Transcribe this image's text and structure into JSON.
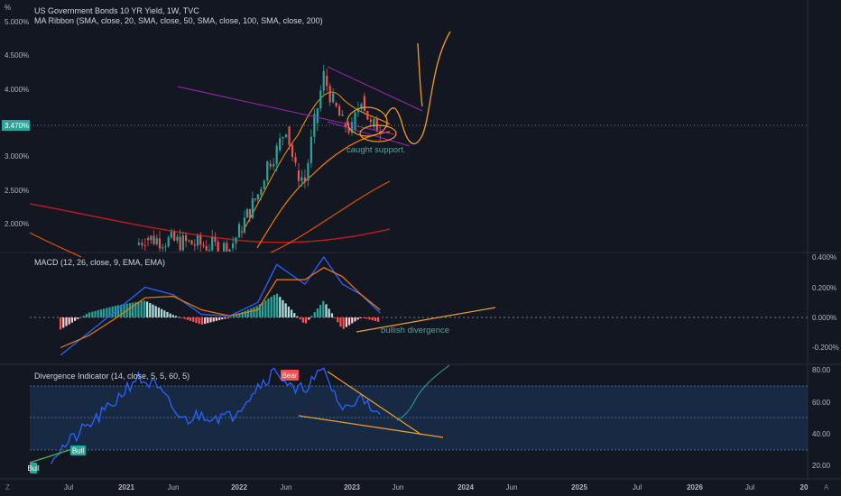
{
  "header": {
    "corner_symbol": "%",
    "title": "US Government Bonds 10 YR Yield, 1W, TVC",
    "ma_ribbon": "MA Ribbon (SMA, close, 20, SMA, close, 50, SMA, close, 100, SMA, close, 200)",
    "macd_label": "MACD (12, 26, close, 9, EMA, EMA)",
    "div_label": "Divergence Indicator (14, close, 5, 5, 60, 5)"
  },
  "annotations": {
    "support": "caught support.",
    "bullish_div": "bullish divergence",
    "bear": "Bear",
    "bull": "Bull",
    "bull_small": "Bull",
    "current_price": "3.470%",
    "bottom_left": "Z",
    "bottom_right": "A"
  },
  "colors": {
    "background": "#131722",
    "up": "#26a69a",
    "down": "#ef5350",
    "rsi_line": "#2962ff",
    "ma_orange": "#f57c00",
    "ma_red": "#b71c1c",
    "trendline_purple": "#9c27b0",
    "drawing_orange": "#f59b29",
    "rsi_band": "#1e3a5f"
  },
  "chart_data": [
    {
      "type": "candlestick",
      "title": "US Government Bonds 10 YR Yield, 1W, TVC",
      "y_axis_ticks": [
        "5.000%",
        "4.500%",
        "4.000%",
        "3.470%",
        "3.000%",
        "2.500%",
        "2.000%"
      ],
      "ylim": [
        1.6,
        5.2
      ],
      "x_tick_labels": [
        "Jul",
        "2021",
        "Jun",
        "2022",
        "Jun",
        "2023",
        "Jun",
        "2024",
        "Jun",
        "2025",
        "Jul",
        "2026",
        "Jul",
        "20"
      ],
      "approx_closes": [
        {
          "date": "2021-02",
          "value": 1.7
        },
        {
          "date": "2021-03",
          "value": 1.8
        },
        {
          "date": "2021-12",
          "value": 1.65
        },
        {
          "date": "2022-01",
          "value": 1.9
        },
        {
          "date": "2022-03",
          "value": 2.45
        },
        {
          "date": "2022-04",
          "value": 2.9
        },
        {
          "date": "2022-05",
          "value": 3.1
        },
        {
          "date": "2022-06",
          "value": 3.45
        },
        {
          "date": "2022-07",
          "value": 2.8
        },
        {
          "date": "2022-08",
          "value": 2.65
        },
        {
          "date": "2022-09",
          "value": 3.5
        },
        {
          "date": "2022-10",
          "value": 4.2
        },
        {
          "date": "2022-11",
          "value": 3.8
        },
        {
          "date": "2022-12",
          "value": 3.5
        },
        {
          "date": "2023-01",
          "value": 3.4
        },
        {
          "date": "2023-02",
          "value": 3.9
        },
        {
          "date": "2023-03",
          "value": 3.45
        },
        {
          "date": "2023-04",
          "value": 3.45
        }
      ],
      "current_price": 3.47
    },
    {
      "type": "histogram+line",
      "title": "MACD (12, 26, close, 9, EMA, EMA)",
      "y_axis_ticks": [
        "0.400%",
        "0.200%",
        "0.000%",
        "-0.200%"
      ],
      "ylim": [
        -0.3,
        0.45
      ],
      "macd_points": [
        {
          "date": "2020-06",
          "value": -0.25
        },
        {
          "date": "2020-09",
          "value": -0.1
        },
        {
          "date": "2020-12",
          "value": 0.05
        },
        {
          "date": "2021-03",
          "value": 0.2
        },
        {
          "date": "2021-06",
          "value": 0.15
        },
        {
          "date": "2021-09",
          "value": 0.02
        },
        {
          "date": "2021-12",
          "value": 0.01
        },
        {
          "date": "2022-03",
          "value": 0.1
        },
        {
          "date": "2022-05",
          "value": 0.35
        },
        {
          "date": "2022-08",
          "value": 0.22
        },
        {
          "date": "2022-10",
          "value": 0.4
        },
        {
          "date": "2022-12",
          "value": 0.22
        },
        {
          "date": "2023-02",
          "value": 0.15
        },
        {
          "date": "2023-04",
          "value": 0.03
        }
      ],
      "signal_points": [
        {
          "date": "2020-06",
          "value": -0.2
        },
        {
          "date": "2020-09",
          "value": -0.12
        },
        {
          "date": "2020-12",
          "value": 0.0
        },
        {
          "date": "2021-03",
          "value": 0.13
        },
        {
          "date": "2021-06",
          "value": 0.14
        },
        {
          "date": "2021-09",
          "value": 0.05
        },
        {
          "date": "2021-12",
          "value": 0.01
        },
        {
          "date": "2022-03",
          "value": 0.05
        },
        {
          "date": "2022-05",
          "value": 0.25
        },
        {
          "date": "2022-08",
          "value": 0.25
        },
        {
          "date": "2022-10",
          "value": 0.33
        },
        {
          "date": "2022-12",
          "value": 0.27
        },
        {
          "date": "2023-02",
          "value": 0.15
        },
        {
          "date": "2023-04",
          "value": 0.05
        }
      ]
    },
    {
      "type": "line",
      "title": "Divergence Indicator (14, close, 5, 5, 60, 5)",
      "y_axis_ticks": [
        "80.00",
        "60.00",
        "40.00",
        "20.00"
      ],
      "ylim": [
        15,
        82
      ],
      "series": [
        {
          "values": [
            {
              "date": "2020-05",
              "value": 25
            },
            {
              "date": "2020-08",
              "value": 40
            },
            {
              "date": "2020-11",
              "value": 55
            },
            {
              "date": "2021-02",
              "value": 75
            },
            {
              "date": "2021-04",
              "value": 70
            },
            {
              "date": "2021-07",
              "value": 48
            },
            {
              "date": "2021-09",
              "value": 52
            },
            {
              "date": "2021-12",
              "value": 50
            },
            {
              "date": "2022-03",
              "value": 70
            },
            {
              "date": "2022-05",
              "value": 80
            },
            {
              "date": "2022-07",
              "value": 65
            },
            {
              "date": "2022-09",
              "value": 74
            },
            {
              "date": "2022-10",
              "value": 79
            },
            {
              "date": "2022-12",
              "value": 55
            },
            {
              "date": "2023-01",
              "value": 57
            },
            {
              "date": "2023-02",
              "value": 68
            },
            {
              "date": "2023-03",
              "value": 52
            },
            {
              "date": "2023-04",
              "value": 52
            }
          ]
        }
      ]
    }
  ]
}
